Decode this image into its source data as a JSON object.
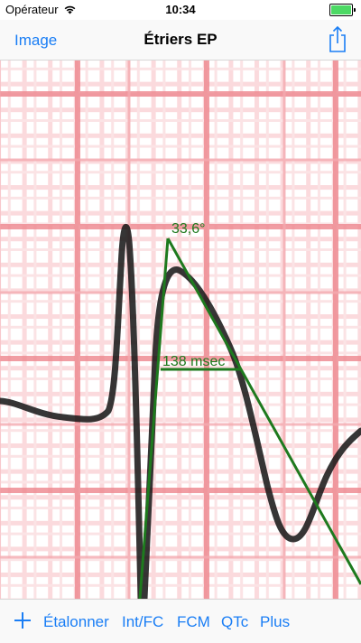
{
  "status_bar": {
    "carrier": "Opérateur",
    "time": "10:34",
    "battery_color": "#4cd964"
  },
  "nav": {
    "back_label": "Image",
    "title": "Étriers EP",
    "share_icon": "share-icon"
  },
  "calipers": {
    "angle_label": "33,6°",
    "interval_label": "138 msec",
    "color": "#1e7a1e"
  },
  "toolbar": {
    "add_icon": "plus-icon",
    "items": [
      "Étalonner",
      "Int/FC",
      "FCM",
      "QTc",
      "Plus"
    ]
  },
  "colors": {
    "accent": "#1a7ef5",
    "grid_major": "#ef8c93",
    "grid_minor": "#f8c9cc"
  }
}
